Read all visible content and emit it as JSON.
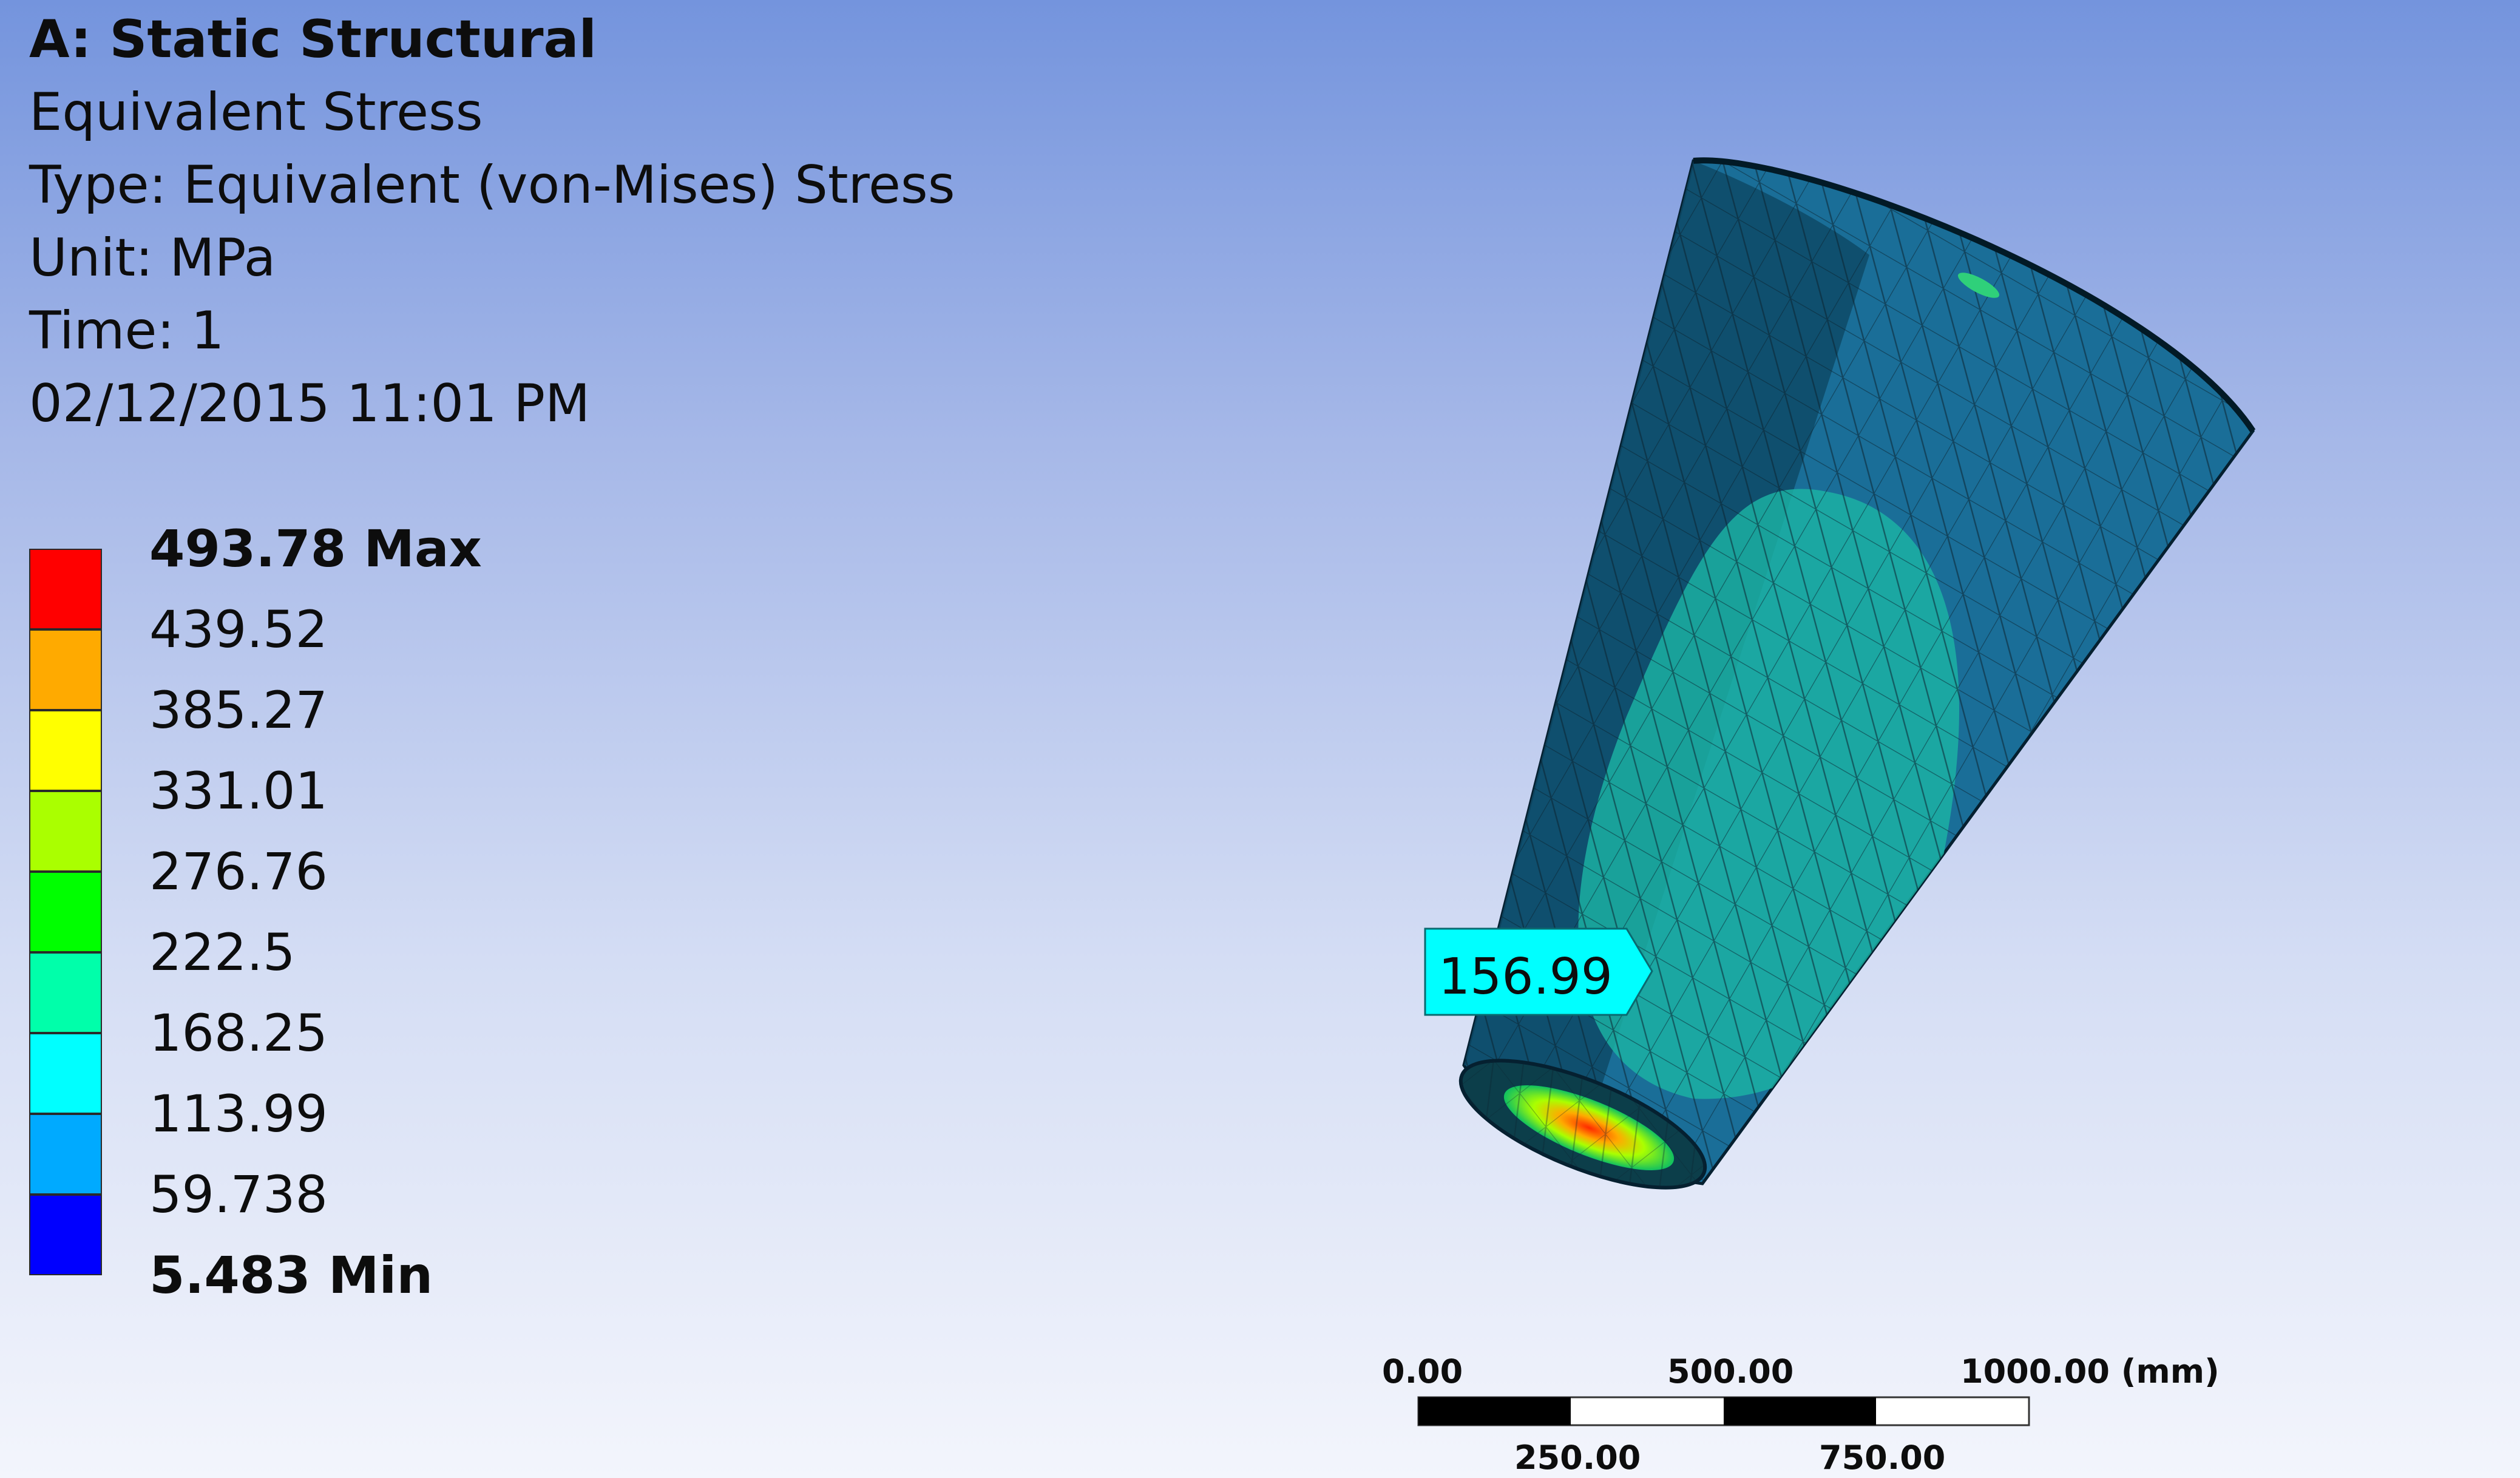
{
  "header": {
    "title": "A: Static Structural",
    "result_name": "Equivalent Stress",
    "type": "Type: Equivalent (von-Mises) Stress",
    "unit": "Unit: MPa",
    "time": "Time: 1",
    "timestamp": "02/12/2015 11:01 PM"
  },
  "legend": {
    "levels": [
      {
        "label": "493.78 Max",
        "color": "#ff0000",
        "bold": true
      },
      {
        "label": "439.52",
        "color": "#ffaa00",
        "bold": false
      },
      {
        "label": "385.27",
        "color": "#ffff00",
        "bold": false
      },
      {
        "label": "331.01",
        "color": "#aaff00",
        "bold": false
      },
      {
        "label": "276.76",
        "color": "#00ff00",
        "bold": false
      },
      {
        "label": "222.5",
        "color": "#00ffaa",
        "bold": false
      },
      {
        "label": "168.25",
        "color": "#00ffff",
        "bold": false
      },
      {
        "label": "113.99",
        "color": "#00aaff",
        "bold": false
      },
      {
        "label": "59.738",
        "color": "#0000ff",
        "bold": false
      },
      {
        "label": "5.483 Min",
        "color": null,
        "bold": true
      }
    ]
  },
  "probe": {
    "value": "156.99",
    "color": "#00ffff"
  },
  "scale_bar": {
    "top_labels": [
      "0.00",
      "500.00",
      "1000.00 (mm)"
    ],
    "bottom_labels": [
      "250.00",
      "750.00"
    ]
  }
}
